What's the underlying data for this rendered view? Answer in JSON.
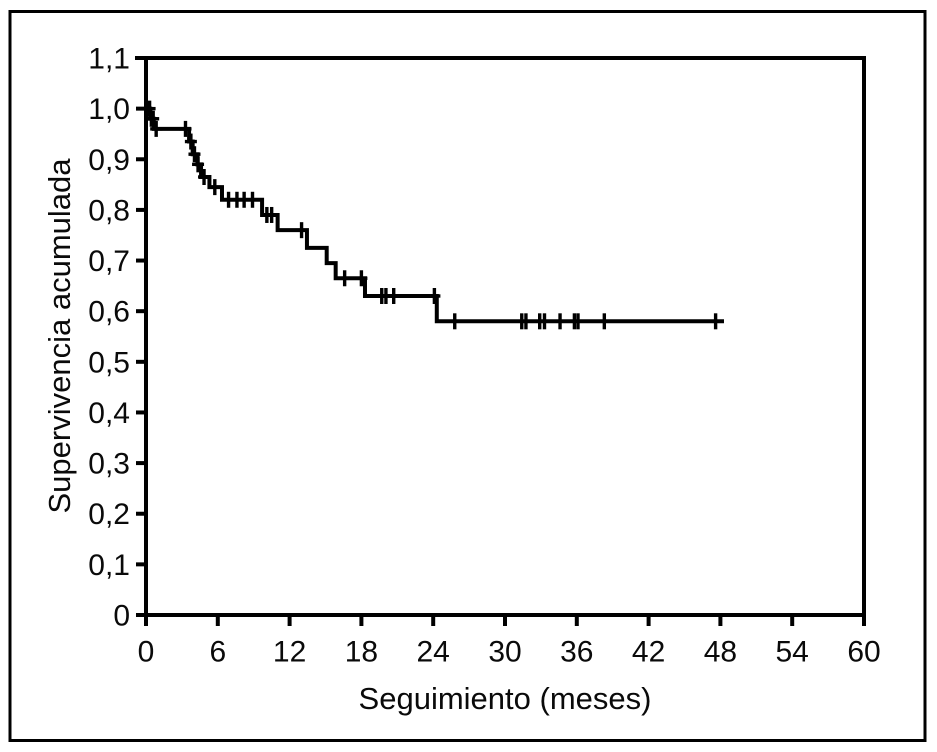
{
  "figure": {
    "background": "#ffffff",
    "ink_color": "#000000"
  },
  "chart_data": {
    "type": "line",
    "chart_kind": "kaplan-meier-survival-step",
    "title": "",
    "xlabel": "Seguimiento (meses)",
    "ylabel": "Supervivencia acumulada",
    "xlim": [
      0,
      60
    ],
    "ylim": [
      0,
      1.1
    ],
    "x_ticks": [
      0,
      6,
      12,
      18,
      24,
      30,
      36,
      42,
      48,
      54,
      60
    ],
    "x_tick_labels": [
      "0",
      "6",
      "12",
      "18",
      "24",
      "30",
      "36",
      "42",
      "48",
      "54",
      "60"
    ],
    "y_ticks": [
      1.1,
      1.0,
      0.9,
      0.8,
      0.7,
      0.6,
      0.5,
      0.4,
      0.3,
      0.2,
      0.1,
      0
    ],
    "y_tick_labels": [
      "1,1",
      "1,0",
      "0,9",
      "0,8",
      "0,7",
      "0,6",
      "0,5",
      "0,4",
      "0,3",
      "0,2",
      "0,1",
      "0"
    ],
    "decimal_separator": ",",
    "grid": false,
    "legend": false,
    "series": [
      {
        "name": "Supervivencia acumulada",
        "color": "#000000",
        "steps": [
          {
            "t": 0,
            "s": 1.0
          },
          {
            "t": 0.35,
            "s": 0.98
          },
          {
            "t": 0.65,
            "s": 0.96
          },
          {
            "t": 3.6,
            "s": 0.935
          },
          {
            "t": 3.9,
            "s": 0.91
          },
          {
            "t": 4.3,
            "s": 0.89
          },
          {
            "t": 4.6,
            "s": 0.865
          },
          {
            "t": 5.3,
            "s": 0.845
          },
          {
            "t": 6.35,
            "s": 0.82
          },
          {
            "t": 9.7,
            "s": 0.79
          },
          {
            "t": 11.0,
            "s": 0.76
          },
          {
            "t": 13.45,
            "s": 0.725
          },
          {
            "t": 15.1,
            "s": 0.695
          },
          {
            "t": 15.85,
            "s": 0.665
          },
          {
            "t": 18.3,
            "s": 0.63
          },
          {
            "t": 24.3,
            "s": 0.58
          }
        ],
        "end_t": 48.3,
        "censors": [
          {
            "t": 0.3,
            "s": 1.0
          },
          {
            "t": 0.45,
            "s": 0.98
          },
          {
            "t": 0.6,
            "s": 0.98
          },
          {
            "t": 0.85,
            "s": 0.96
          },
          {
            "t": 3.3,
            "s": 0.96
          },
          {
            "t": 3.75,
            "s": 0.935
          },
          {
            "t": 4.05,
            "s": 0.91
          },
          {
            "t": 4.35,
            "s": 0.89
          },
          {
            "t": 4.85,
            "s": 0.865
          },
          {
            "t": 5.75,
            "s": 0.845
          },
          {
            "t": 6.9,
            "s": 0.82
          },
          {
            "t": 7.6,
            "s": 0.82
          },
          {
            "t": 8.2,
            "s": 0.82
          },
          {
            "t": 8.9,
            "s": 0.82
          },
          {
            "t": 10.1,
            "s": 0.79
          },
          {
            "t": 10.5,
            "s": 0.79
          },
          {
            "t": 13.0,
            "s": 0.76
          },
          {
            "t": 16.6,
            "s": 0.665
          },
          {
            "t": 18.0,
            "s": 0.665
          },
          {
            "t": 19.7,
            "s": 0.63
          },
          {
            "t": 20.05,
            "s": 0.63
          },
          {
            "t": 20.7,
            "s": 0.63
          },
          {
            "t": 24.1,
            "s": 0.63
          },
          {
            "t": 25.8,
            "s": 0.58
          },
          {
            "t": 31.4,
            "s": 0.58
          },
          {
            "t": 31.75,
            "s": 0.58
          },
          {
            "t": 32.9,
            "s": 0.58
          },
          {
            "t": 33.3,
            "s": 0.58
          },
          {
            "t": 34.6,
            "s": 0.58
          },
          {
            "t": 35.8,
            "s": 0.58
          },
          {
            "t": 36.1,
            "s": 0.58
          },
          {
            "t": 38.3,
            "s": 0.58
          },
          {
            "t": 47.6,
            "s": 0.58
          }
        ]
      }
    ]
  }
}
